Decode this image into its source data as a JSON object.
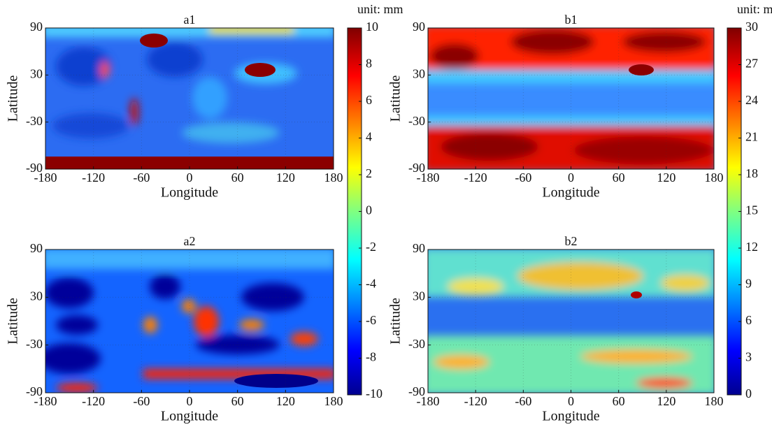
{
  "chart_data": [
    {
      "type": "heatmap",
      "title": "a1",
      "xlabel": "Longitude",
      "ylabel": "Latitude",
      "xlim": [
        -180,
        180
      ],
      "xticks": [
        -180,
        -120,
        -60,
        0,
        60,
        120,
        180
      ],
      "ylim": [
        -90,
        90
      ],
      "yticks": [
        -90,
        -30,
        30,
        90
      ],
      "colorbar": {
        "label": "unit: mm",
        "lim": [
          -10,
          10
        ],
        "ticks": [
          -10,
          -8,
          -6,
          -4,
          -2,
          0,
          2,
          4,
          6,
          8,
          10
        ]
      }
    },
    {
      "type": "heatmap",
      "title": "a2",
      "xlabel": "Longitude",
      "ylabel": "Latitude",
      "xlim": [
        -180,
        180
      ],
      "xticks": [
        -180,
        -120,
        -60,
        0,
        60,
        120,
        180
      ],
      "ylim": [
        -90,
        90
      ],
      "yticks": [
        -90,
        -30,
        30,
        90
      ]
    },
    {
      "type": "heatmap",
      "title": "b1",
      "xlabel": "Longitude",
      "ylabel": "Latitude",
      "xlim": [
        -180,
        180
      ],
      "xticks": [
        -180,
        -120,
        -60,
        0,
        60,
        120,
        180
      ],
      "ylim": [
        -90,
        90
      ],
      "yticks": [
        -90,
        -30,
        30,
        90
      ],
      "colorbar": {
        "label": "unit: mm",
        "lim": [
          0,
          30
        ],
        "ticks": [
          0,
          3,
          6,
          9,
          12,
          15,
          18,
          21,
          24,
          27,
          30
        ]
      }
    },
    {
      "type": "heatmap",
      "title": "b2",
      "xlabel": "Longitude",
      "ylabel": "Latitude",
      "xlim": [
        -180,
        180
      ],
      "xticks": [
        -180,
        -120,
        -60,
        0,
        60,
        120,
        180
      ],
      "ylim": [
        -90,
        90
      ],
      "yticks": [
        -90,
        -30,
        30,
        90
      ]
    }
  ]
}
